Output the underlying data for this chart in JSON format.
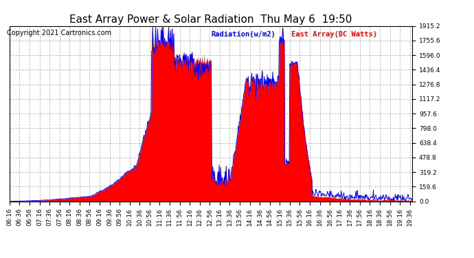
{
  "title": "East Array Power & Solar Radiation  Thu May 6  19:50",
  "copyright": "Copyright 2021 Cartronics.com",
  "legend_radiation": "Radiation(w/m2)",
  "legend_array": "East Array(DC Watts)",
  "legend_radiation_color": "blue",
  "legend_array_color": "red",
  "ymax": 1915.2,
  "ymin": 0.0,
  "yticks": [
    0.0,
    159.6,
    319.2,
    478.8,
    638.4,
    798.0,
    957.6,
    1117.2,
    1276.8,
    1436.4,
    1596.0,
    1755.6,
    1915.2
  ],
  "background_color": "#ffffff",
  "plot_bg_color": "#ffffff",
  "grid_color": "#b0b0b0",
  "title_fontsize": 11,
  "tick_fontsize": 6.5,
  "copyright_fontsize": 7
}
